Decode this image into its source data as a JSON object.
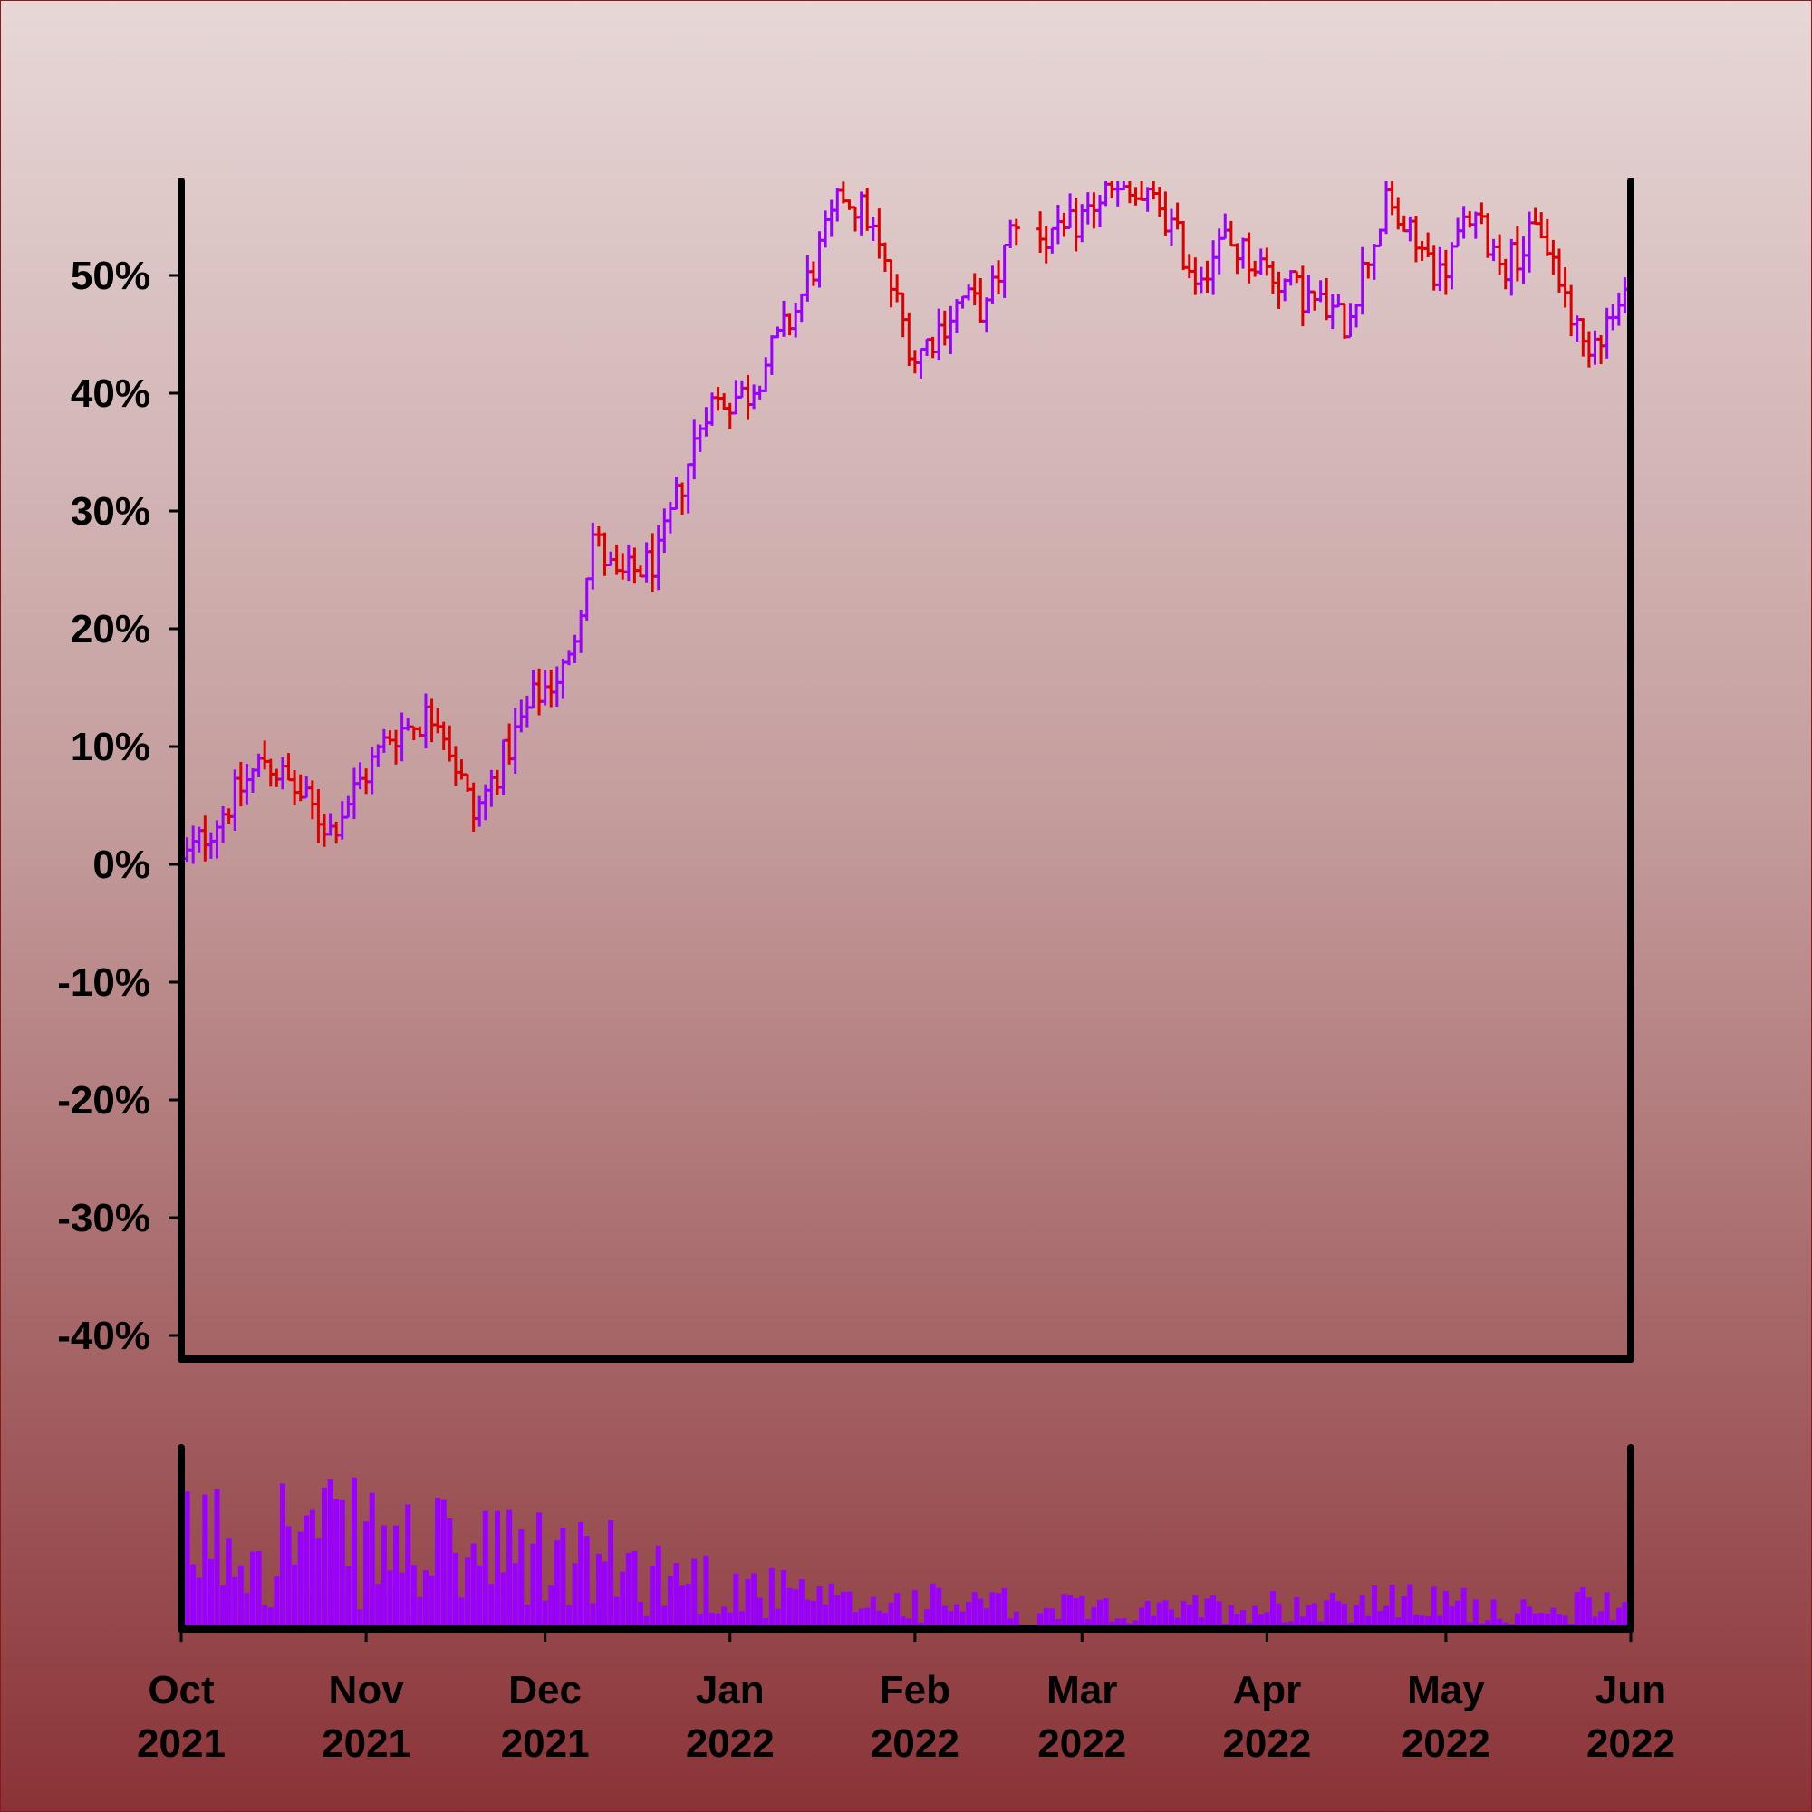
{
  "chart_data": [
    {
      "type": "ohlc",
      "title": "",
      "xlabel": "",
      "ylabel": "",
      "ylim": [
        -42,
        58
      ],
      "y_ticks": [
        {
          "value": 50,
          "label": "50%"
        },
        {
          "value": 40,
          "label": "40%"
        },
        {
          "value": 30,
          "label": "30%"
        },
        {
          "value": 20,
          "label": "20%"
        },
        {
          "value": 10,
          "label": "10%"
        },
        {
          "value": 0,
          "label": "0%"
        },
        {
          "value": -10,
          "label": "-10%"
        },
        {
          "value": -20,
          "label": "-20%"
        },
        {
          "value": -30,
          "label": "-30%"
        },
        {
          "value": -40,
          "label": "-40%"
        }
      ],
      "x_range": [
        "2021-10-01",
        "2022-06-01"
      ],
      "x_ticks": [
        {
          "date": "2021-10-01",
          "month": "Oct",
          "year": "2021"
        },
        {
          "date": "2021-11-01",
          "month": "Nov",
          "year": "2021"
        },
        {
          "date": "2021-12-01",
          "month": "Dec",
          "year": "2021"
        },
        {
          "date": "2022-01-01",
          "month": "Jan",
          "year": "2022"
        },
        {
          "date": "2022-02-01",
          "month": "Feb",
          "year": "2022"
        },
        {
          "date": "2022-03-01",
          "month": "Mar",
          "year": "2022"
        },
        {
          "date": "2022-04-01",
          "month": "Apr",
          "year": "2022"
        },
        {
          "date": "2022-05-01",
          "month": "May",
          "year": "2022"
        },
        {
          "date": "2022-06-01",
          "month": "Jun",
          "year": "2022"
        }
      ],
      "grid": false,
      "colors": {
        "up": "#9900ff",
        "down": "#dd0000"
      },
      "ohlc_anchors": [
        {
          "date": "2021-10-01",
          "close": 0
        },
        {
          "date": "2021-10-15",
          "close": 9
        },
        {
          "date": "2021-10-26",
          "close": 3
        },
        {
          "date": "2021-11-05",
          "close": 11
        },
        {
          "date": "2021-11-13",
          "close": 13
        },
        {
          "date": "2021-11-19",
          "close": 4
        },
        {
          "date": "2021-11-29",
          "close": 14
        },
        {
          "date": "2021-12-05",
          "close": 17
        },
        {
          "date": "2021-12-09",
          "close": 28
        },
        {
          "date": "2021-12-13",
          "close": 24
        },
        {
          "date": "2021-12-20",
          "close": 26
        },
        {
          "date": "2021-12-28",
          "close": 39
        },
        {
          "date": "2022-01-04",
          "close": 40
        },
        {
          "date": "2022-01-12",
          "close": 47
        },
        {
          "date": "2022-01-20",
          "close": 57
        },
        {
          "date": "2022-01-24",
          "close": 55
        },
        {
          "date": "2022-02-01",
          "close": 43
        },
        {
          "date": "2022-02-09",
          "close": 48
        },
        {
          "date": "2022-02-13",
          "close": 47
        },
        {
          "date": "2022-02-18",
          "close": 55
        },
        {
          "date": "2022-02-25",
          "close": 53
        },
        {
          "date": "2022-03-05",
          "close": 57
        },
        {
          "date": "2022-03-14",
          "close": 56
        },
        {
          "date": "2022-03-20",
          "close": 50
        },
        {
          "date": "2022-03-25",
          "close": 53
        },
        {
          "date": "2022-04-05",
          "close": 49
        },
        {
          "date": "2022-04-14",
          "close": 46
        },
        {
          "date": "2022-04-21",
          "close": 56
        },
        {
          "date": "2022-04-30",
          "close": 50
        },
        {
          "date": "2022-05-05",
          "close": 55
        },
        {
          "date": "2022-05-11",
          "close": 51
        },
        {
          "date": "2022-05-17",
          "close": 54
        },
        {
          "date": "2022-05-24",
          "close": 44
        },
        {
          "date": "2022-06-01",
          "close": 48
        }
      ],
      "gap": {
        "start": "2022-02-19",
        "end": "2022-02-21"
      }
    },
    {
      "type": "bar",
      "title": "",
      "xlabel": "",
      "ylabel": "",
      "ylim": [
        0,
        100
      ],
      "color": "#9900ff",
      "volume_anchors": [
        {
          "date": "2021-10-01",
          "value": 70
        },
        {
          "date": "2021-10-20",
          "value": 78
        },
        {
          "date": "2021-11-05",
          "value": 65
        },
        {
          "date": "2021-11-20",
          "value": 58
        },
        {
          "date": "2021-12-05",
          "value": 55
        },
        {
          "date": "2021-12-20",
          "value": 45
        },
        {
          "date": "2022-01-05",
          "value": 32
        },
        {
          "date": "2022-01-20",
          "value": 20
        },
        {
          "date": "2022-02-01",
          "value": 22
        },
        {
          "date": "2022-02-20",
          "value": 18
        },
        {
          "date": "2022-03-10",
          "value": 13
        },
        {
          "date": "2022-03-25",
          "value": 18
        },
        {
          "date": "2022-04-15",
          "value": 22
        },
        {
          "date": "2022-05-05",
          "value": 20
        },
        {
          "date": "2022-05-20",
          "value": 10
        },
        {
          "date": "2022-05-27",
          "value": 28
        },
        {
          "date": "2022-06-01",
          "value": 15
        }
      ]
    }
  ]
}
